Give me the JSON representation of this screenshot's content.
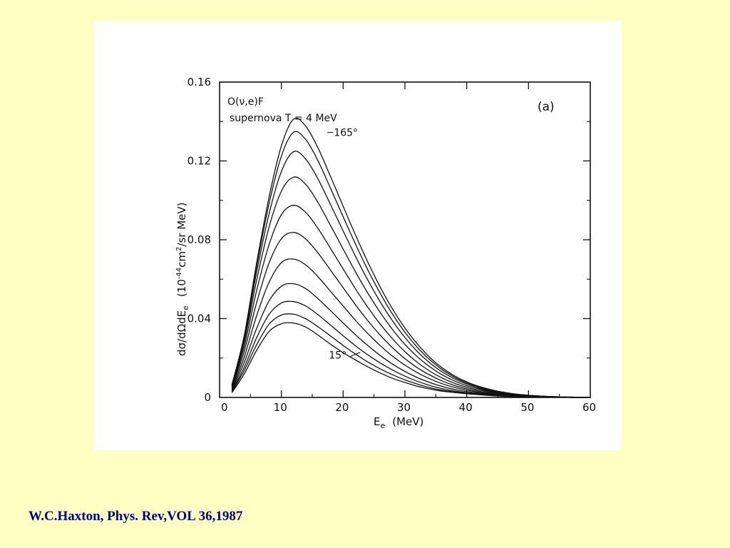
{
  "citation": "W.C.Haxton, Phys. Rev,VOL 36,1987",
  "chart_data": {
    "type": "line",
    "panel_label": "(a)",
    "annotation_lines": [
      "O(ν,e)F",
      "supernova T = 4 MeV"
    ],
    "xlabel_main": "E",
    "xlabel_sub": "e",
    "xlabel_unit": "(MeV)",
    "ylabel_parts": {
      "a": "dσ/dΩdE",
      "a_sub": "e",
      "b": "(10",
      "b_sup": "-44",
      "c": "cm",
      "c_sup": "2",
      "d": "/sr MeV)"
    },
    "xlim": [
      0,
      60
    ],
    "ylim": [
      0,
      0.16
    ],
    "xticks": [
      0,
      10,
      20,
      30,
      40,
      50,
      60
    ],
    "yticks": [
      0,
      0.04,
      0.08,
      0.12,
      0.16
    ],
    "xtick_labels": [
      "0",
      "10",
      "20",
      "30",
      "40",
      "50",
      "60"
    ],
    "ytick_labels": [
      "0",
      "0.04",
      "0.08",
      "0.12",
      "0.16"
    ],
    "curve_labels": [
      {
        "text": "165°",
        "x": 18.5,
        "y": 0.1345
      },
      {
        "text": "15°",
        "x": 17.7,
        "y": 0.0215
      }
    ],
    "grid": false,
    "x": [
      2,
      4,
      6,
      8,
      10,
      12,
      14,
      16,
      18,
      20,
      22,
      24,
      26,
      28,
      30,
      32,
      34,
      36,
      38,
      40,
      42,
      44,
      46,
      48,
      50,
      52,
      54,
      56,
      58,
      60
    ],
    "series": [
      {
        "peak": 0.038,
        "values": [
          0.0024,
          0.012,
          0.0239,
          0.0334,
          0.0374,
          0.0377,
          0.0356,
          0.0315,
          0.0269,
          0.0227,
          0.019,
          0.0155,
          0.0124,
          0.0097,
          0.0076,
          0.0057,
          0.0043,
          0.0032,
          0.0025,
          0.0019,
          0.0014,
          0.0009,
          0.0006,
          0.0004,
          0.0003,
          0.0002,
          0.0001,
          0.0001,
          0.0,
          0.0
        ]
      },
      {
        "peak": 0.0425,
        "values": [
          0.0028,
          0.0137,
          0.0267,
          0.0371,
          0.0418,
          0.0422,
          0.0398,
          0.0357,
          0.0311,
          0.0264,
          0.022,
          0.018,
          0.0145,
          0.0115,
          0.0089,
          0.0068,
          0.005,
          0.0037,
          0.0028,
          0.002,
          0.0015,
          0.001,
          0.0007,
          0.0005,
          0.0003,
          0.0002,
          0.0001,
          0.0001,
          0.0,
          0.0
        ]
      },
      {
        "peak": 0.049,
        "values": [
          0.0032,
          0.0154,
          0.0303,
          0.0421,
          0.0479,
          0.0486,
          0.0463,
          0.0418,
          0.0366,
          0.0313,
          0.0262,
          0.0216,
          0.0175,
          0.0139,
          0.0108,
          0.0082,
          0.0061,
          0.0045,
          0.0033,
          0.0024,
          0.0017,
          0.0012,
          0.0008,
          0.0005,
          0.0003,
          0.0002,
          0.0001,
          0.0001,
          0.0,
          0.0
        ]
      },
      {
        "peak": 0.058,
        "values": [
          0.0037,
          0.0178,
          0.035,
          0.0489,
          0.0564,
          0.0577,
          0.0551,
          0.0499,
          0.0439,
          0.0378,
          0.0318,
          0.0263,
          0.0213,
          0.0169,
          0.0132,
          0.0101,
          0.0076,
          0.0056,
          0.0041,
          0.003,
          0.0021,
          0.0014,
          0.0009,
          0.0006,
          0.0004,
          0.0003,
          0.0002,
          0.0001,
          0.0,
          0.0
        ]
      },
      {
        "peak": 0.0705,
        "values": [
          0.0043,
          0.0205,
          0.0415,
          0.0583,
          0.0684,
          0.0702,
          0.0671,
          0.061,
          0.0537,
          0.0464,
          0.0391,
          0.0324,
          0.0263,
          0.0209,
          0.0164,
          0.0126,
          0.0095,
          0.007,
          0.0051,
          0.0037,
          0.0026,
          0.0017,
          0.0011,
          0.0007,
          0.0005,
          0.0003,
          0.0002,
          0.0001,
          0.0,
          0.0
        ]
      },
      {
        "peak": 0.084,
        "values": [
          0.0049,
          0.0234,
          0.0481,
          0.0681,
          0.0805,
          0.0837,
          0.0802,
          0.073,
          0.0644,
          0.0557,
          0.047,
          0.0389,
          0.0316,
          0.0252,
          0.0197,
          0.0151,
          0.0114,
          0.0084,
          0.0061,
          0.0044,
          0.0031,
          0.0021,
          0.0014,
          0.0009,
          0.0006,
          0.0004,
          0.0002,
          0.0001,
          0.0,
          0.0
        ]
      },
      {
        "peak": 0.098,
        "values": [
          0.0054,
          0.026,
          0.0542,
          0.0774,
          0.0927,
          0.0975,
          0.0937,
          0.0854,
          0.0754,
          0.0652,
          0.0551,
          0.0457,
          0.0372,
          0.0297,
          0.0232,
          0.0178,
          0.0134,
          0.0099,
          0.0072,
          0.0052,
          0.0037,
          0.0025,
          0.0017,
          0.0011,
          0.0007,
          0.0004,
          0.0002,
          0.0001,
          0.0,
          0.0
        ]
      },
      {
        "peak": 0.1125,
        "values": [
          0.0058,
          0.0283,
          0.0595,
          0.0863,
          0.1046,
          0.1118,
          0.1079,
          0.0985,
          0.087,
          0.0753,
          0.0637,
          0.0529,
          0.0431,
          0.0344,
          0.0269,
          0.0207,
          0.0156,
          0.0115,
          0.0084,
          0.006,
          0.0043,
          0.0029,
          0.002,
          0.0013,
          0.0008,
          0.0005,
          0.0003,
          0.0002,
          0.0001,
          0.0
        ]
      },
      {
        "peak": 0.1255,
        "values": [
          0.0061,
          0.0299,
          0.0636,
          0.093,
          0.1146,
          0.1247,
          0.1207,
          0.1104,
          0.0976,
          0.0845,
          0.0716,
          0.0595,
          0.0485,
          0.0388,
          0.0304,
          0.0233,
          0.0176,
          0.013,
          0.0095,
          0.0068,
          0.0048,
          0.0033,
          0.0022,
          0.0015,
          0.001,
          0.0006,
          0.0004,
          0.0002,
          0.0001,
          0.0
        ]
      },
      {
        "peak": 0.1355,
        "values": [
          0.0063,
          0.031,
          0.0665,
          0.0981,
          0.1224,
          0.1346,
          0.1306,
          0.1196,
          0.1058,
          0.0917,
          0.0778,
          0.0647,
          0.0528,
          0.0422,
          0.0331,
          0.0254,
          0.0192,
          0.0142,
          0.0103,
          0.0074,
          0.0053,
          0.0036,
          0.0024,
          0.0016,
          0.0011,
          0.0007,
          0.0004,
          0.0002,
          0.0001,
          0.0
        ]
      },
      {
        "peak": 0.1425,
        "values": [
          0.0064,
          0.0316,
          0.0683,
          0.1014,
          0.1276,
          0.1412,
          0.1374,
          0.1261,
          0.1118,
          0.097,
          0.0824,
          0.0686,
          0.056,
          0.0448,
          0.0352,
          0.0271,
          0.0204,
          0.0151,
          0.011,
          0.0079,
          0.0056,
          0.0039,
          0.0026,
          0.0017,
          0.0011,
          0.0007,
          0.0004,
          0.0002,
          0.0001,
          0.0
        ]
      }
    ]
  }
}
